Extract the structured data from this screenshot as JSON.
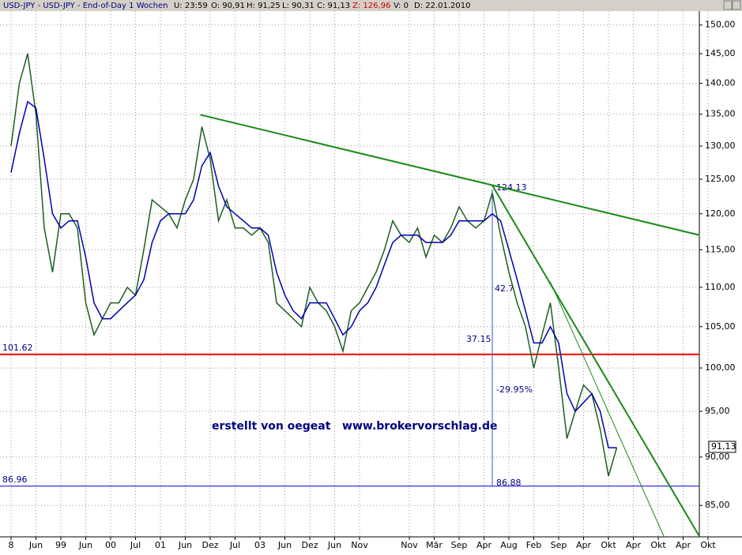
{
  "header": [
    "USD-JPY - USD-JPY - End-of-Day 1 Wochen",
    "U: 23:59",
    "O: 90,91",
    "H: 91,25",
    "L: 90,31",
    "C: 91,13",
    "Z: 126,96",
    "V: 0",
    "D: 22.01.2010"
  ],
  "chart_data": {
    "type": "line",
    "log_scale": true,
    "grid": true,
    "categories": [
      "8",
      null,
      null,
      "Jun",
      null,
      null,
      "99",
      null,
      null,
      "Jun",
      null,
      null,
      "00",
      null,
      null,
      "Jul",
      null,
      null,
      "01",
      null,
      null,
      "Jun",
      null,
      null,
      "Dez",
      null,
      null,
      "Jul",
      null,
      null,
      "03",
      null,
      null,
      "Jun",
      null,
      null,
      "Dez",
      null,
      null,
      "Jun",
      null,
      null,
      "Nov",
      null,
      null,
      null,
      null,
      null,
      "Nov",
      null,
      null,
      "Mär",
      null,
      null,
      "Sep",
      null,
      null,
      "Apr",
      null,
      null,
      "Aug",
      null,
      null,
      "Feb",
      null,
      null,
      "Sep",
      null,
      null,
      "Apr",
      null,
      null,
      "Okt",
      null,
      null,
      "Apr",
      null,
      null,
      "Okt",
      null,
      null,
      "Apr",
      null,
      null,
      "Okt"
    ],
    "series": [
      {
        "color": "#1b5e20",
        "values": [
          130,
          140,
          145,
          135,
          118,
          112,
          120,
          120,
          118,
          108,
          104,
          106,
          108,
          108,
          110,
          109,
          115,
          122,
          121,
          120,
          118,
          122,
          125,
          133,
          128,
          119,
          122,
          118,
          118,
          117,
          118,
          116,
          108,
          107,
          106,
          105,
          110,
          108,
          107,
          105,
          102,
          107,
          108,
          110,
          112,
          115,
          119,
          117,
          116,
          118,
          114,
          117,
          116,
          118,
          121,
          119,
          118,
          119,
          123,
          117,
          112,
          108,
          105,
          100,
          104,
          108,
          100,
          92,
          95,
          98,
          97,
          93,
          88,
          91,
          null,
          null,
          null,
          null,
          null,
          null,
          null,
          null,
          null,
          null,
          null
        ]
      },
      {
        "color": "#0000b0",
        "values": [
          126,
          132,
          137,
          136,
          128,
          120,
          118,
          119,
          119,
          114,
          108,
          106,
          106,
          107,
          108,
          109,
          111,
          116,
          119,
          120,
          120,
          120,
          122,
          127,
          129,
          124,
          121,
          120,
          119,
          118,
          118,
          117,
          112,
          109,
          107,
          106,
          108,
          108,
          108,
          106,
          104,
          105,
          107,
          108,
          110,
          113,
          116,
          117,
          117,
          117,
          116,
          116,
          116,
          117,
          119,
          119,
          119,
          119,
          120,
          119,
          115,
          111,
          107,
          103,
          103,
          105,
          103,
          97,
          95,
          96,
          97,
          95,
          91,
          91,
          null,
          null,
          null,
          null,
          null,
          null,
          null,
          null,
          null,
          null,
          null
        ]
      }
    ],
    "ylim": [
      81.9,
      152.5
    ],
    "yticks": [
      {
        "value": 85,
        "label": "85,00"
      },
      {
        "value": 90,
        "label": "90,00"
      },
      {
        "value": 95,
        "label": "95,00"
      },
      {
        "value": 100,
        "label": "100,00"
      },
      {
        "value": 105,
        "label": "105,00"
      },
      {
        "value": 110,
        "label": "110,00"
      },
      {
        "value": 115,
        "label": "115,00"
      },
      {
        "value": 120,
        "label": "120,00"
      },
      {
        "value": 125,
        "label": "125,00"
      },
      {
        "value": 130,
        "label": "130,00"
      },
      {
        "value": 135,
        "label": "135,00"
      },
      {
        "value": 140,
        "label": "140,00"
      },
      {
        "value": 145,
        "label": "145,00"
      },
      {
        "value": 150,
        "label": "150,00"
      }
    ],
    "hlines": [
      {
        "value": 101.62,
        "color": "#ff0000"
      },
      {
        "value": 86.96,
        "color": "#0000cc"
      }
    ],
    "trendlines": [
      {
        "x": [
          22.8,
          83
        ],
        "values": [
          134.9,
          117.0
        ],
        "color": "#1a8a1a",
        "width": 2
      },
      {
        "x": [
          58,
          83
        ],
        "values": [
          124.1,
          81.9
        ],
        "color": "#1a8a1a",
        "width": 2
      },
      {
        "x": [
          65,
          78.7
        ],
        "values": [
          110.7,
          81.9
        ],
        "color": "#1a8a1a",
        "width": 1
      }
    ],
    "last_price": "91,13",
    "annotations": [
      "124.13",
      "42.7",
      "37.15",
      "-29.95%",
      "86.88",
      "erstellt von oegeat   www.brokervorschlag.de"
    ]
  }
}
